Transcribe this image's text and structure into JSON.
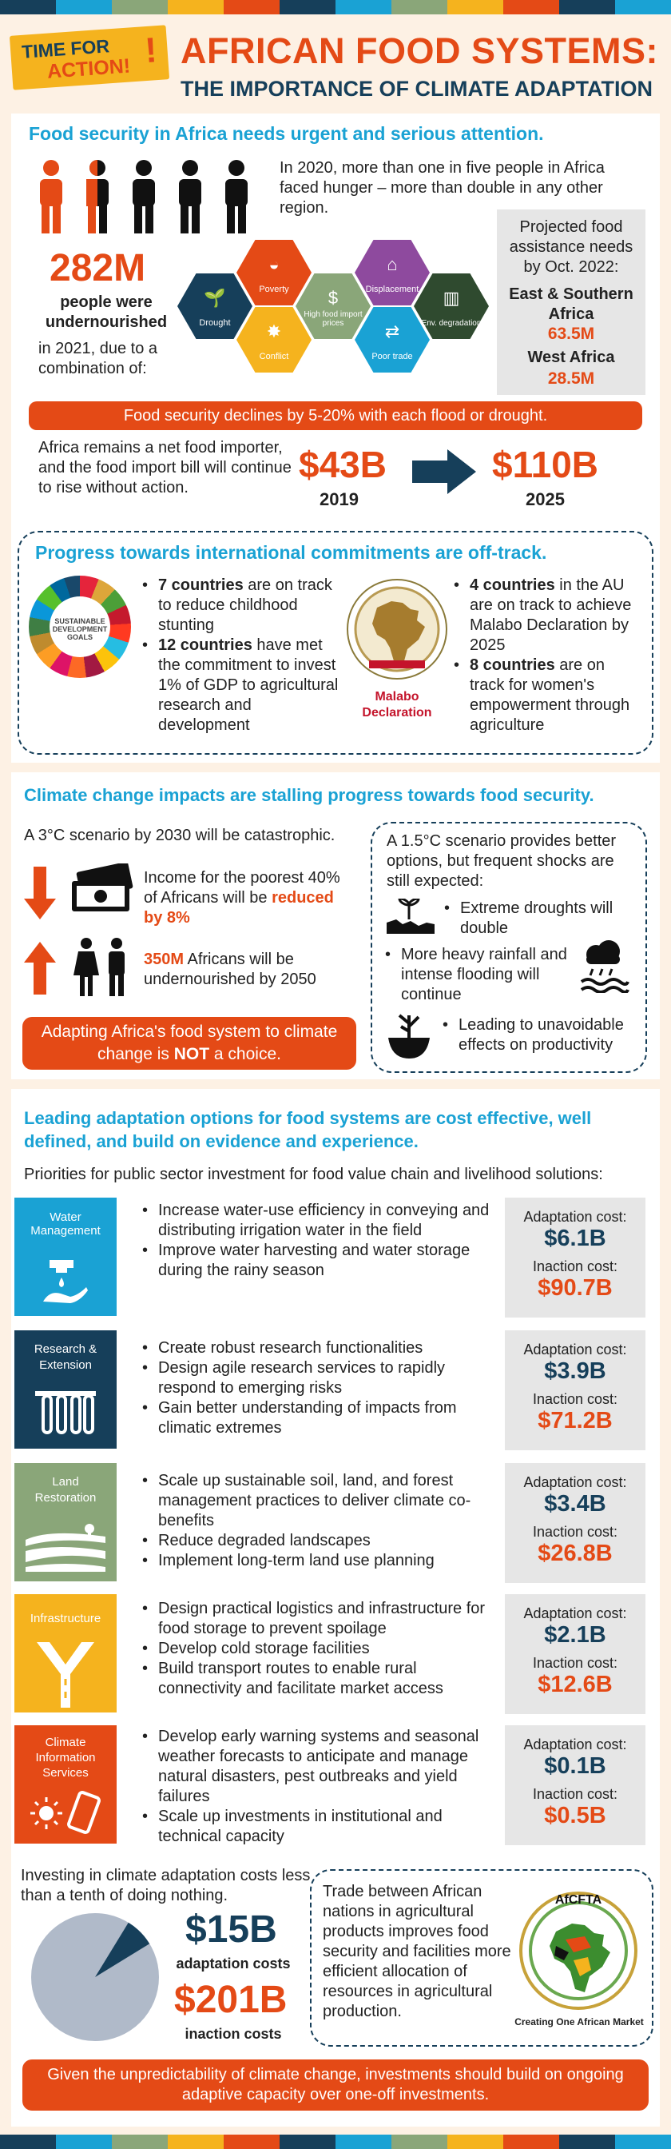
{
  "colors": {
    "orange": "#e44a16",
    "navy": "#163f5a",
    "blue": "#1aa2d4",
    "yellow": "#f5b31e",
    "sage": "#8aa679",
    "gray": "#e6e6e6"
  },
  "header": {
    "badge_line1": "TIME FOR",
    "badge_line2": "ACTION!",
    "title": "AFRICAN FOOD SYSTEMS:",
    "subtitle": "THE IMPORTANCE OF CLIMATE ADAPTATION"
  },
  "s1": {
    "heading": "Food security in Africa needs urgent and serious attention.",
    "hunger_text": "In 2020, more than one in five people in Africa faced hunger – more than double in any other region.",
    "stat": "282M",
    "stat_label": "people were undernourished",
    "stat_tail": "in 2021, due to a combination of:",
    "hexes": [
      {
        "label": "Drought",
        "icon": "drought-icon"
      },
      {
        "label": "Poverty",
        "icon": "bowl-icon"
      },
      {
        "label": "Conflict",
        "icon": "explosion-icon"
      },
      {
        "label": "High food import prices",
        "icon": "money-icon"
      },
      {
        "label": "Displacement",
        "icon": "house-icon"
      },
      {
        "label": "Poor trade",
        "icon": "trade-arrows-icon"
      },
      {
        "label": "Env. degradation",
        "icon": "stump-icon"
      }
    ],
    "projected_title": "Projected food assistance needs by Oct. 2022:",
    "region1": "East & Southern Africa",
    "region1_value": "63.5M",
    "region2": "West Africa",
    "region2_value": "28.5M",
    "banner": "Food security declines by 5-20% with each flood or drought.",
    "importer_text": "Africa remains a net food importer, and the food import bill will continue to rise without action.",
    "bill1": "$43B",
    "year1": "2019",
    "bill2": "$110B",
    "year2": "2025",
    "progress_heading": "Progress towards international commitments are off-track.",
    "sdg_label": "SUSTAINABLE DEVELOPMENT GOALS",
    "left_b1_bold": "7 countries",
    "left_b1": " are on track to reduce childhood stunting",
    "left_b2_bold": "12 countries",
    "left_b2": " have met the commitment to invest 1% of GDP to agricultural research and development",
    "malabo_label": "Malabo Declaration",
    "right_b1_bold": "4 countries",
    "right_b1": " in the AU are on track to achieve Malabo Declaration by 2025",
    "right_b2_bold": "8 countries",
    "right_b2": " are on track for women's empowerment through agriculture"
  },
  "s2": {
    "heading": "Climate change impacts are stalling progress towards food security.",
    "scenario3": "A 3°C scenario by 2030 will be catastrophic.",
    "income_text": "Income for the poorest 40% of Africans will be",
    "income_bold": "reduced by 8%",
    "under_bold": "350M",
    "under_text": " Africans will be undernourished by 2050",
    "banner_pre": "Adapting Africa's food system to climate change is ",
    "banner_bold": "NOT",
    "banner_post": " a choice.",
    "scenario15": "A 1.5°C scenario provides better options, but frequent shocks are still expected:",
    "r1": "Extreme droughts will double",
    "r2": "More heavy rainfall and intense flooding will continue",
    "r3": "Leading to unavoidable effects on productivity"
  },
  "s3": {
    "heading": "Leading adaptation options for food systems are cost effective, well defined, and build on evidence and experience.",
    "priorities": "Priorities for public sector investment for food value chain and livelihood solutions:",
    "adapt_label": "Adaptation cost:",
    "inaction_label": "Inaction cost:",
    "options": [
      {
        "name": "Water Management",
        "icon": "water-tap-icon",
        "color": "#1aa2d4",
        "bullets": [
          "Increase water-use efficiency in conveying and distributing irrigation water in the field",
          "Improve water harvesting and water storage during the rainy season"
        ],
        "adapt": "$6.1B",
        "inaction": "$90.7B"
      },
      {
        "name": "Research & Extension",
        "icon": "test-tubes-icon",
        "color": "#163f5a",
        "bullets": [
          "Create robust research functionalities",
          "Design agile research services to rapidly respond to emerging risks",
          "Gain better understanding of impacts from climatic extremes"
        ],
        "adapt": "$3.9B",
        "inaction": "$71.2B"
      },
      {
        "name": "Land Restoration",
        "icon": "fields-icon",
        "color": "#8aa679",
        "bullets": [
          "Scale up sustainable soil, land, and forest management practices to deliver climate co-benefits",
          "Reduce degraded landscapes",
          "Implement long-term land use planning"
        ],
        "adapt": "$3.4B",
        "inaction": "$26.8B"
      },
      {
        "name": "Infrastructure",
        "icon": "road-icon",
        "color": "#f5b31e",
        "bullets": [
          "Design practical logistics and infrastructure for food storage to prevent spoilage",
          "Develop cold storage facilities",
          "Build transport routes to enable rural connectivity and facilitate market access"
        ],
        "adapt": "$2.1B",
        "inaction": "$12.6B"
      },
      {
        "name": "Climate Information Services",
        "icon": "sun-phone-icon",
        "color": "#e44a16",
        "bullets": [
          "Develop early warning systems and seasonal weather forecasts to anticipate and manage natural disasters, pest outbreaks and yield failures",
          "Scale up investments in institutional and technical capacity"
        ],
        "adapt": "$0.1B",
        "inaction": "$0.5B"
      }
    ],
    "invest_text": "Investing in climate adaptation costs less than a tenth of doing nothing.",
    "adapt_total": "$15B",
    "adapt_total_label": "adaptation costs",
    "inaction_total": "$201B",
    "inaction_total_label": "inaction costs",
    "pie_share": 0.075,
    "trade_text": "Trade between African nations in agricultural products improves food security and facilities more efficient allocation of resources in agricultural production.",
    "afcfta": "AfCFTA",
    "afcfta_tag": "Creating One African Market",
    "footer": "Given the unpredictability of climate change, investments should build on ongoing adaptive capacity over one-off investments."
  }
}
